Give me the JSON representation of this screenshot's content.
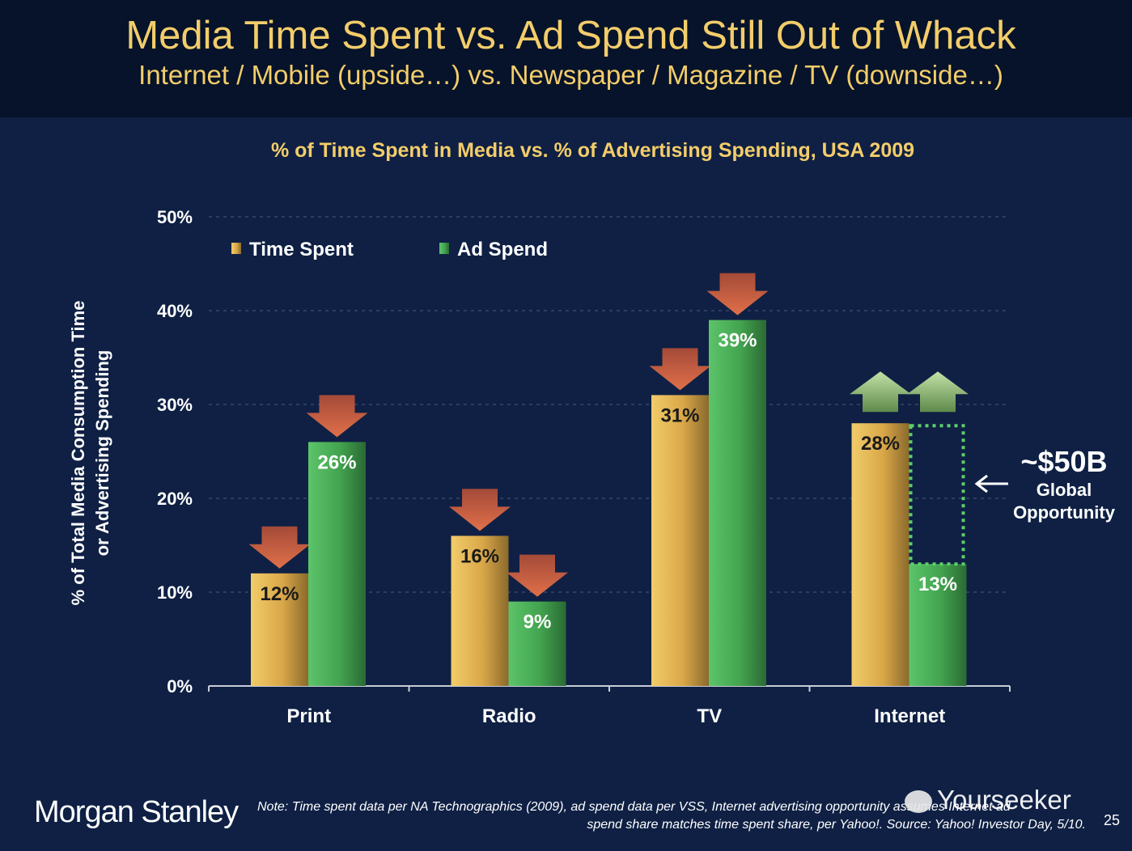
{
  "header": {
    "title": "Media Time Spent vs. Ad Spend Still Out of Whack",
    "subtitle": "Internet / Mobile (upside…) vs. Newspaper / Magazine / TV (downside…)"
  },
  "chart_data": {
    "type": "bar",
    "title": "% of Time Spent in Media vs. % of Advertising Spending, USA 2009",
    "xlabel": "",
    "ylabel": [
      "% of Total Media Consumption Time",
      "or Advertising Spending"
    ],
    "ylim": [
      0,
      50
    ],
    "yticks": [
      "0%",
      "10%",
      "20%",
      "30%",
      "40%",
      "50%"
    ],
    "grid": true,
    "legend_placement": "top-left",
    "categories": [
      "Print",
      "Radio",
      "TV",
      "Internet"
    ],
    "series": [
      {
        "name": "Time Spent",
        "values": [
          12,
          16,
          31,
          28
        ],
        "labels": [
          "12%",
          "16%",
          "31%",
          "28%"
        ],
        "color": "#e6b850"
      },
      {
        "name": "Ad Spend",
        "values": [
          26,
          9,
          39,
          13
        ],
        "labels": [
          "26%",
          "9%",
          "39%",
          "13%"
        ],
        "color": "#4fae5a"
      }
    ],
    "trend_arrows": [
      "down",
      "down",
      "down",
      "up"
    ],
    "arrow_colors": {
      "down": "#e0704a",
      "up": "#9cc98a"
    },
    "opportunity_gap": {
      "category": "Internet",
      "from": 13,
      "to": 28
    },
    "annotation": {
      "value": "~$50B",
      "line1": "Global",
      "line2": "Opportunity"
    }
  },
  "footer": {
    "logo": "Morgan Stanley",
    "note_line1": "Note: Time spent data per NA Technographics (2009), ad spend data per VSS, Internet advertising opportunity assumes Internet ad",
    "note_line2": "spend share matches time spent share, per Yahoo!. Source: Yahoo! Investor Day, 5/10.",
    "page_number": "25",
    "watermark": "Yourseeker"
  }
}
